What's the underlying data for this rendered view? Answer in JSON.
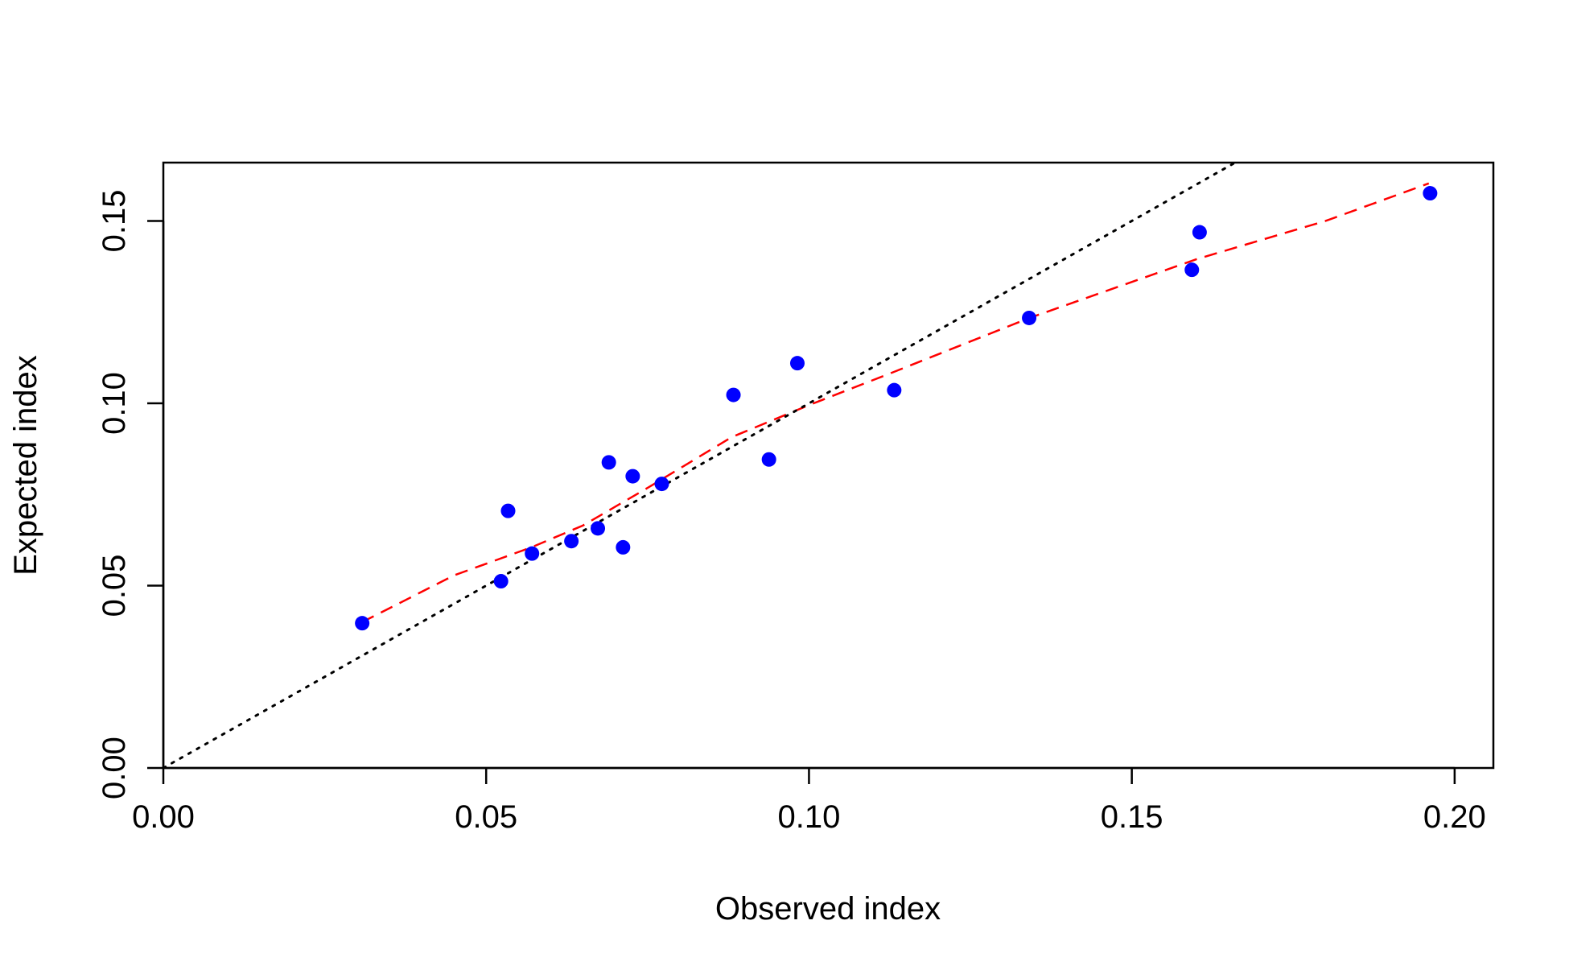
{
  "chart_data": {
    "type": "scatter",
    "title": "",
    "xlabel": "Observed index",
    "ylabel": "Expected index",
    "xlim": [
      0,
      0.206
    ],
    "ylim": [
      0,
      0.166
    ],
    "x_ticks": [
      "0.00",
      "0.05",
      "0.10",
      "0.15",
      "0.20"
    ],
    "y_ticks": [
      "0.00",
      "0.05",
      "0.10",
      "0.15"
    ],
    "x_tick_values": [
      0,
      0.05,
      0.1,
      0.15,
      0.2
    ],
    "y_tick_values": [
      0,
      0.05,
      0.1,
      0.15
    ],
    "grid": false,
    "legend": "none",
    "series": [
      {
        "kind": "points",
        "color": "#0000FF",
        "points": [
          [
            0.0308,
            0.0397
          ],
          [
            0.0523,
            0.0512
          ],
          [
            0.0534,
            0.0705
          ],
          [
            0.0571,
            0.0588
          ],
          [
            0.0632,
            0.0622
          ],
          [
            0.0673,
            0.0657
          ],
          [
            0.069,
            0.0838
          ],
          [
            0.0712,
            0.0605
          ],
          [
            0.0727,
            0.08
          ],
          [
            0.0772,
            0.0779
          ],
          [
            0.0883,
            0.1023
          ],
          [
            0.0938,
            0.0846
          ],
          [
            0.0982,
            0.111
          ],
          [
            0.1132,
            0.1036
          ],
          [
            0.1341,
            0.1234
          ],
          [
            0.1593,
            0.1366
          ],
          [
            0.1605,
            0.1469
          ],
          [
            0.1962,
            0.1576
          ]
        ]
      },
      {
        "kind": "line",
        "style": "dashed",
        "color": "#FF0000",
        "points": [
          [
            0.0308,
            0.04
          ],
          [
            0.045,
            0.0528
          ],
          [
            0.057,
            0.0605
          ],
          [
            0.065,
            0.0665
          ],
          [
            0.075,
            0.0768
          ],
          [
            0.088,
            0.0907
          ],
          [
            0.1,
            0.0995
          ],
          [
            0.113,
            0.1085
          ],
          [
            0.134,
            0.1233
          ],
          [
            0.16,
            0.1395
          ],
          [
            0.18,
            0.15
          ],
          [
            0.196,
            0.1603
          ]
        ]
      },
      {
        "kind": "line",
        "style": "dotted",
        "color": "#000000",
        "points": [
          [
            0,
            0
          ],
          [
            0.206,
            0.206
          ]
        ]
      }
    ]
  }
}
